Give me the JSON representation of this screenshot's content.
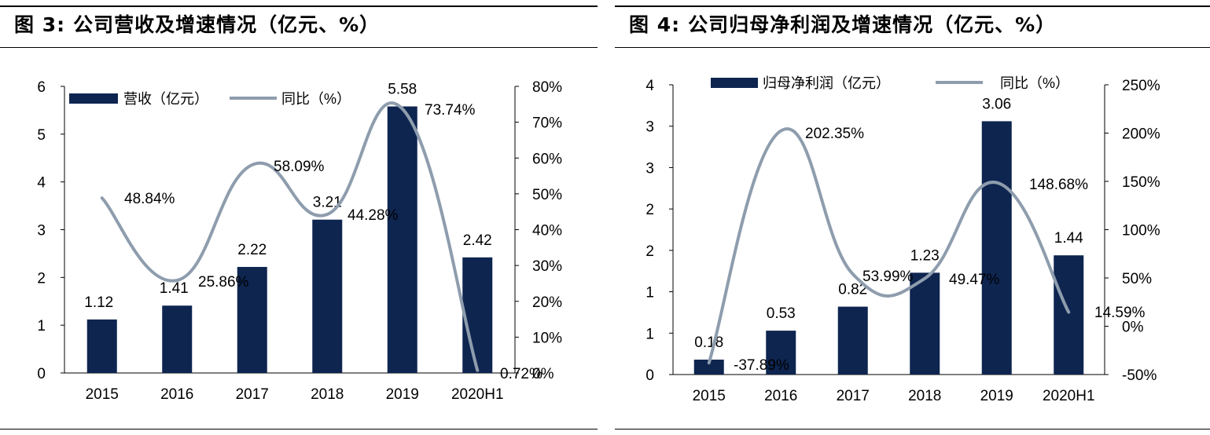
{
  "colors": {
    "bar": "#0e2550",
    "line": "#8e9dad",
    "axis": "#000000",
    "text": "#000000"
  },
  "chart_data": [
    {
      "type": "bar",
      "figure_label": "图 3:",
      "title": "公司营收及增速情况（亿元、%）",
      "categories": [
        "2015",
        "2016",
        "2017",
        "2018",
        "2019",
        "2020H1"
      ],
      "series": [
        {
          "name": "营收（亿元）",
          "type": "bar",
          "axis": "left",
          "values": [
            1.12,
            1.41,
            2.22,
            3.21,
            5.58,
            2.42
          ],
          "labels": [
            "1.12",
            "1.41",
            "2.22",
            "3.21",
            "5.58",
            "2.42"
          ]
        },
        {
          "name": "同比（%）",
          "type": "line",
          "axis": "right",
          "values": [
            48.84,
            25.86,
            58.09,
            44.28,
            73.74,
            0.72
          ],
          "labels": [
            "48.84%",
            "25.86%",
            "58.09%",
            "44.28%",
            "73.74%",
            "0.72%"
          ]
        }
      ],
      "y_left": {
        "ylim": [
          0,
          6
        ],
        "ticks": [
          "0",
          "1",
          "2",
          "3",
          "4",
          "5",
          "6"
        ]
      },
      "y_right": {
        "ylim": [
          0,
          80
        ],
        "ticks": [
          "0%",
          "10%",
          "20%",
          "30%",
          "40%",
          "50%",
          "60%",
          "70%",
          "80%"
        ]
      },
      "legend": "top-left",
      "grid": false
    },
    {
      "type": "bar",
      "figure_label": "图 4:",
      "title": "公司归母净利润及增速情况（亿元、%）",
      "categories": [
        "2015",
        "2016",
        "2017",
        "2018",
        "2019",
        "2020H1"
      ],
      "series": [
        {
          "name": "归母净利润（亿元）",
          "type": "bar",
          "axis": "left",
          "values": [
            0.18,
            0.53,
            0.82,
            1.23,
            3.06,
            1.44
          ],
          "labels": [
            "0.18",
            "0.53",
            "0.82",
            "1.23",
            "3.06",
            "1.44"
          ]
        },
        {
          "name": "同比（%）",
          "type": "line",
          "axis": "right",
          "values": [
            -37.89,
            202.35,
            53.99,
            49.47,
            148.68,
            14.59
          ],
          "labels": [
            "-37.89%",
            "202.35%",
            "53.99%",
            "49.47%",
            "148.68%",
            "14.59%"
          ]
        }
      ],
      "y_left": {
        "ylim": [
          0,
          3.5
        ],
        "ticks": [
          "0",
          "1",
          "1",
          "2",
          "2",
          "3",
          "3",
          "4"
        ]
      },
      "y_right": {
        "ylim": [
          -50,
          250
        ],
        "ticks": [
          "-50%",
          "0%",
          "50%",
          "100%",
          "150%",
          "200%",
          "250%"
        ]
      },
      "legend": "top",
      "grid": false
    }
  ]
}
